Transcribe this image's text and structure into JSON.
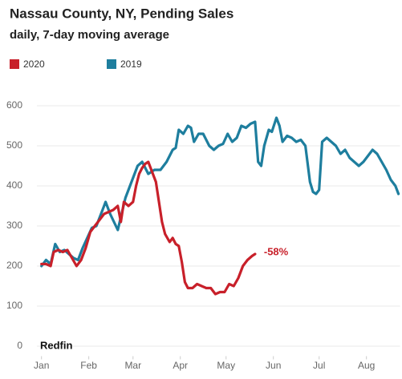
{
  "chart_data": {
    "type": "line",
    "title": "Nassau County, NY, Pending Sales",
    "subtitle": "daily, 7-day moving average",
    "annotation": "-58%",
    "source": "Redfin",
    "xlim": [
      -3,
      235
    ],
    "ylim": [
      -25,
      625
    ],
    "yticks": [
      0,
      100,
      200,
      300,
      400,
      500,
      600
    ],
    "xticks": [
      {
        "value": 0,
        "label": "Jan"
      },
      {
        "value": 31,
        "label": "Feb"
      },
      {
        "value": 60,
        "label": "Mar"
      },
      {
        "value": 91,
        "label": "Apr"
      },
      {
        "value": 121,
        "label": "May"
      },
      {
        "value": 152,
        "label": "Jun"
      },
      {
        "value": 182,
        "label": "Jul"
      },
      {
        "value": 213,
        "label": "Aug"
      }
    ],
    "grid": true,
    "series": [
      {
        "name": "2020",
        "color": "#c8202a",
        "x": [
          0,
          3,
          6,
          8,
          11,
          14,
          17,
          20,
          23,
          26,
          29,
          32,
          35,
          38,
          41,
          44,
          47,
          50,
          52,
          54,
          57,
          60,
          62,
          64,
          66,
          68,
          70,
          72,
          75,
          77,
          79,
          81,
          84,
          86,
          88,
          90,
          92,
          94,
          96,
          99,
          102,
          105,
          108,
          111,
          114,
          117,
          120,
          123,
          126,
          129,
          132,
          135,
          138,
          140
        ],
        "values": [
          205,
          205,
          200,
          235,
          240,
          235,
          240,
          220,
          200,
          215,
          245,
          285,
          300,
          315,
          330,
          335,
          340,
          350,
          310,
          360,
          350,
          360,
          400,
          430,
          445,
          455,
          460,
          440,
          410,
          360,
          310,
          280,
          260,
          270,
          255,
          250,
          210,
          160,
          145,
          145,
          155,
          150,
          145,
          145,
          130,
          135,
          135,
          155,
          150,
          170,
          200,
          215,
          225,
          230
        ]
      },
      {
        "name": "2019",
        "color": "#1e7e9e",
        "x": [
          0,
          3,
          6,
          9,
          12,
          15,
          18,
          21,
          24,
          27,
          30,
          33,
          36,
          39,
          42,
          45,
          50,
          55,
          60,
          63,
          66,
          70,
          74,
          78,
          82,
          86,
          88,
          90,
          93,
          96,
          98,
          100,
          103,
          106,
          110,
          113,
          116,
          119,
          122,
          125,
          128,
          131,
          134,
          137,
          140,
          142,
          144,
          146,
          149,
          151,
          154,
          156,
          158,
          161,
          164,
          167,
          170,
          173,
          176,
          178,
          180,
          182,
          184,
          187,
          190,
          193,
          196,
          199,
          202,
          205,
          208,
          211,
          214,
          217,
          220,
          223,
          226,
          229,
          232,
          234
        ],
        "values": [
          200,
          215,
          205,
          255,
          235,
          240,
          230,
          220,
          215,
          245,
          270,
          295,
          300,
          330,
          360,
          330,
          290,
          370,
          420,
          450,
          460,
          430,
          440,
          440,
          460,
          490,
          495,
          540,
          530,
          550,
          545,
          510,
          530,
          530,
          500,
          490,
          500,
          505,
          530,
          510,
          520,
          550,
          545,
          555,
          560,
          460,
          450,
          500,
          540,
          535,
          570,
          550,
          510,
          525,
          520,
          510,
          515,
          500,
          410,
          385,
          380,
          390,
          510,
          520,
          510,
          500,
          480,
          490,
          470,
          460,
          450,
          460,
          475,
          490,
          480,
          460,
          440,
          415,
          400,
          380
        ]
      }
    ]
  }
}
